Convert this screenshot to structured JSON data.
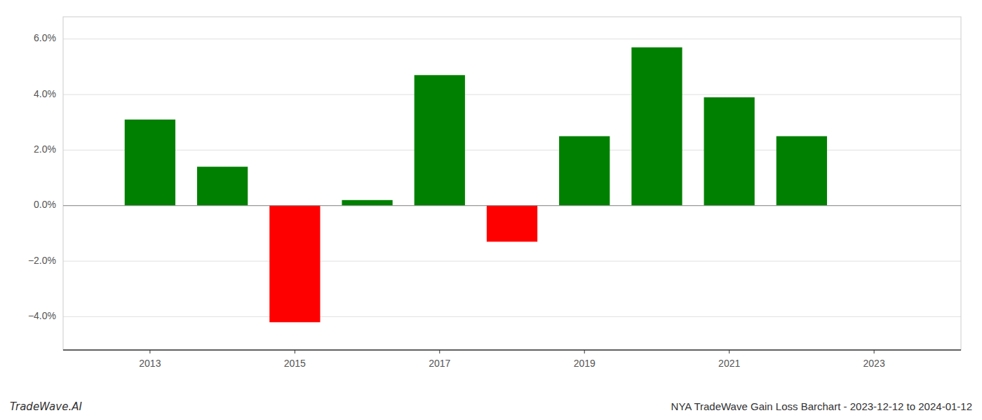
{
  "chart_data": {
    "type": "bar",
    "title": "NYA TradeWave Gain Loss Barchart - 2023-12-12 to 2024-01-12",
    "annotations": [
      "TradeWave.AI"
    ],
    "x": [
      2013,
      2014,
      2015,
      2016,
      2017,
      2018,
      2019,
      2020,
      2021,
      2022
    ],
    "values": [
      0.031,
      0.014,
      -0.042,
      0.002,
      0.047,
      -0.013,
      0.025,
      0.057,
      0.039,
      0.025
    ],
    "colors": [
      "#008000",
      "#008000",
      "#ff0000",
      "#008000",
      "#008000",
      "#ff0000",
      "#008000",
      "#008000",
      "#008000",
      "#008000"
    ],
    "xlim": [
      2011.8,
      2024.2
    ],
    "xticks": [
      2013,
      2015,
      2017,
      2019,
      2021,
      2023
    ],
    "ylim": [
      -0.052,
      0.068
    ],
    "yticks": [
      {
        "value": -0.04,
        "label": "−4.0%"
      },
      {
        "value": -0.02,
        "label": "−2.0%"
      },
      {
        "value": 0.0,
        "label": "0.0%"
      },
      {
        "value": 0.02,
        "label": "2.0%"
      },
      {
        "value": 0.04,
        "label": "4.0%"
      },
      {
        "value": 0.06,
        "label": "6.0%"
      }
    ],
    "grid": true
  }
}
